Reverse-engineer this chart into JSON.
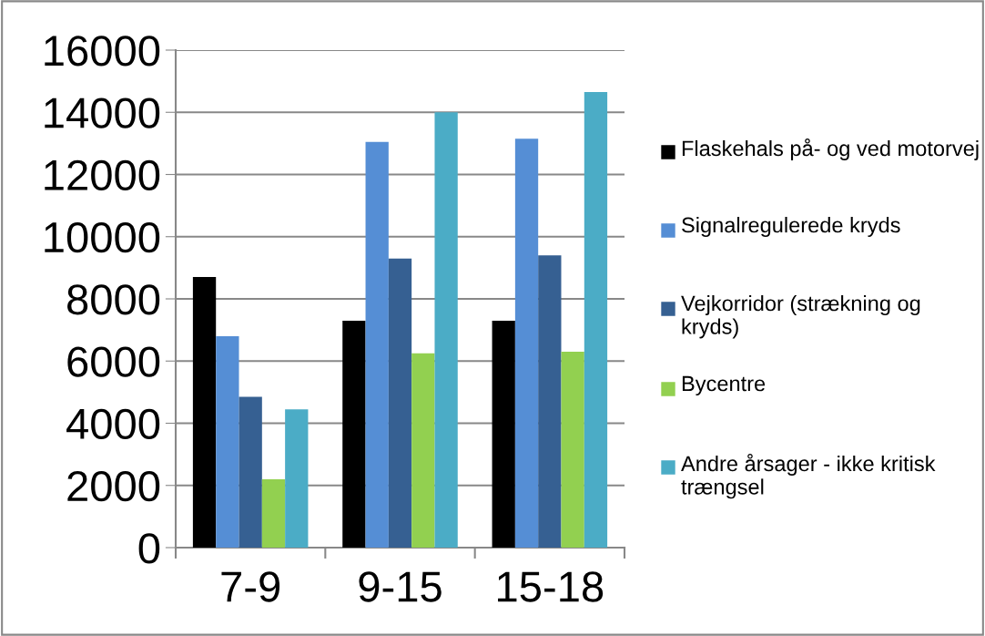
{
  "chart_data": {
    "type": "bar",
    "categories": [
      "7-9",
      "9-15",
      "15-18"
    ],
    "series": [
      {
        "name": "Flaskehals på- og ved motorvej",
        "color": "#000000",
        "values": [
          8700,
          7300,
          7300
        ]
      },
      {
        "name": "Signalregulerede kryds",
        "color": "#558ed5",
        "values": [
          6800,
          13050,
          13150
        ]
      },
      {
        "name": "Vejkorridor (strækning og kryds)",
        "color": "#366092",
        "values": [
          4850,
          9300,
          9400
        ]
      },
      {
        "name": "Bycentre",
        "color": "#92d050",
        "values": [
          2200,
          6250,
          6300
        ]
      },
      {
        "name": "Andre årsager - ikke kritisk trængsel",
        "color": "#4bacc6",
        "values": [
          4450,
          14000,
          14650
        ]
      }
    ],
    "ylim": [
      0,
      16000
    ],
    "yticks": [
      0,
      2000,
      4000,
      6000,
      8000,
      10000,
      12000,
      14000,
      16000
    ],
    "grid": "y",
    "legend": "right"
  }
}
